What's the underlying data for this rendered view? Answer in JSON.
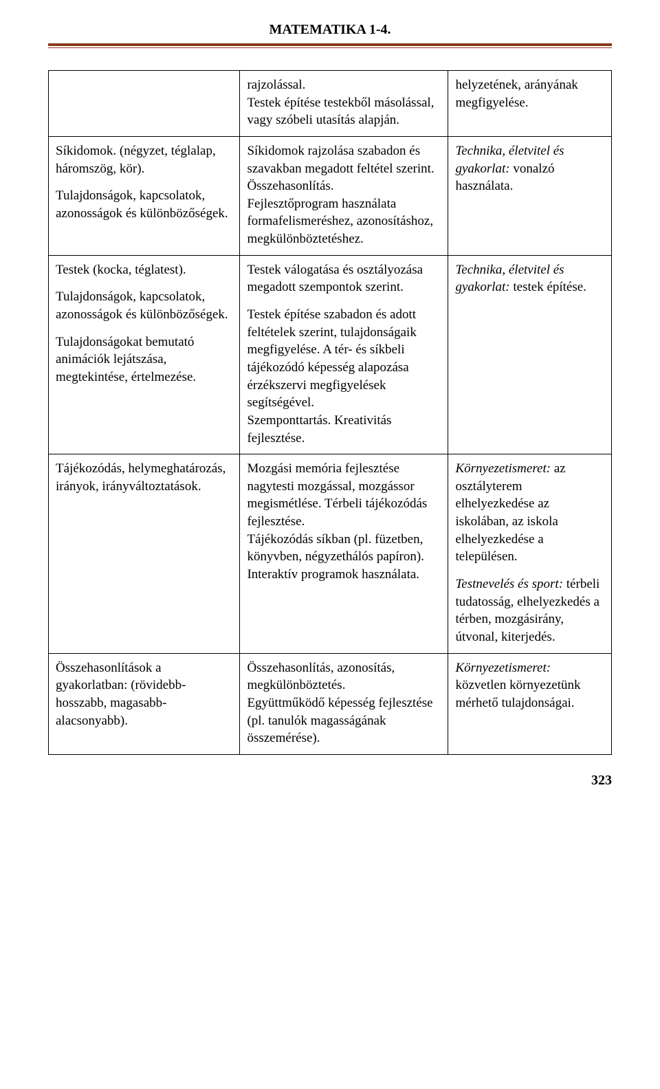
{
  "header": {
    "title": "MATEMATIKA 1-4."
  },
  "table": {
    "row1": {
      "c1": "",
      "c2": "rajzolással.\nTestek építése testekből másolással, vagy szóbeli utasítás alapján.",
      "c3": "helyzetének, arányának megfigyelése."
    },
    "row2": {
      "c1p1": "Síkidomok. (négyzet, téglalap, háromszög, kör).",
      "c1p2": "Tulajdonságok, kapcsolatok, azonosságok és különbözőségek.",
      "c2": "Síkidomok rajzolása szabadon és szavakban megadott feltétel szerint.\nÖsszehasonlítás.\nFejlesztőprogram használata formafelismeréshez, azonosításhoz, megkülönböztetéshez.",
      "c3_italic": "Technika, életvitel és gyakorlat:",
      "c3_rest": " vonalzó használata."
    },
    "row3": {
      "c1p1": "Testek (kocka, téglatest).",
      "c1p2": "Tulajdonságok, kapcsolatok, azonosságok és különbözőségek.",
      "c1p3": "Tulajdonságokat bemutató animációk lejátszása, megtekintése, értelmezése.",
      "c2p1": "Testek válogatása és osztályozása megadott szempontok szerint.",
      "c2p2": "Testek építése szabadon és adott feltételek szerint, tulajdonságaik megfigyelése. A tér- és síkbeli tájékozódó képesség alapozása érzékszervi megfigyelések segítségével.\nSzemponttartás. Kreativitás fejlesztése.",
      "c3_italic": "Technika, életvitel és gyakorlat:",
      "c3_rest": " testek építése."
    },
    "row4": {
      "c1": "Tájékozódás, helymeghatározás, irányok, irányváltoztatások.",
      "c2": "Mozgási memória fejlesztése nagytesti mozgással, mozgássor megismétlése. Térbeli tájékozódás fejlesztése.\nTájékozódás síkban (pl. füzetben, könyvben, négyzethálós papíron). Interaktív programok használata.",
      "c3p1_italic": "Környezetismeret:",
      "c3p1_rest": " az osztályterem elhelyezkedése az iskolában, az iskola elhelyezkedése a településen.",
      "c3p2_italic": "Testnevelés és sport:",
      "c3p2_rest": " térbeli tudatosság, elhelyezkedés a térben, mozgásirány, útvonal, kiterjedés."
    },
    "row5": {
      "c1": "Összehasonlítások a gyakorlatban: (rövidebb-hosszabb, magasabb-alacsonyabb).",
      "c2": "Összehasonlítás, azonosítás, megkülönböztetés.\nEgyüttműködő képesség fejlesztése (pl. tanulók magasságának összemérése).",
      "c3_italic": "Környezetismeret:",
      "c3_rest": " közvetlen környezetünk mérhető tulajdonságai."
    }
  },
  "footer": {
    "page_number": "323"
  }
}
